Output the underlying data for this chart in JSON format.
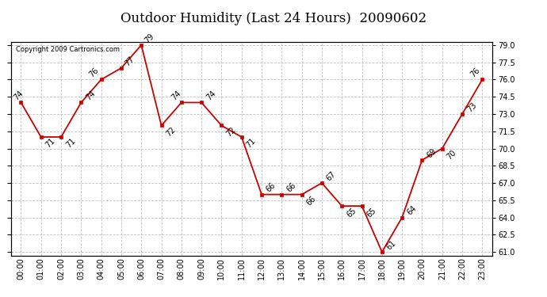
{
  "title": "Outdoor Humidity (Last 24 Hours)  20090602",
  "copyright": "Copyright 2009 Cartronics.com",
  "hours": [
    "00:00",
    "01:00",
    "02:00",
    "03:00",
    "04:00",
    "05:00",
    "06:00",
    "07:00",
    "08:00",
    "09:00",
    "10:00",
    "11:00",
    "12:00",
    "13:00",
    "14:00",
    "15:00",
    "16:00",
    "17:00",
    "18:00",
    "19:00",
    "20:00",
    "21:00",
    "22:00",
    "23:00"
  ],
  "values": [
    74,
    71,
    71,
    74,
    76,
    77,
    79,
    72,
    74,
    74,
    72,
    71,
    66,
    66,
    66,
    67,
    65,
    65,
    61,
    64,
    69,
    70,
    73,
    76
  ],
  "line_color": "#cc0000",
  "marker_color": "#cc0000",
  "bg_color": "#ffffff",
  "grid_color": "#c0c0c0",
  "ylim_min": 61.0,
  "ylim_max": 79.0,
  "ytick_interval": 1.5,
  "title_fontsize": 12,
  "label_fontsize": 7,
  "annotation_fontsize": 7,
  "yticks": [
    61.0,
    62.5,
    64.0,
    65.5,
    67.0,
    68.5,
    70.0,
    71.5,
    73.0,
    74.5,
    76.0,
    77.5,
    79.0
  ]
}
